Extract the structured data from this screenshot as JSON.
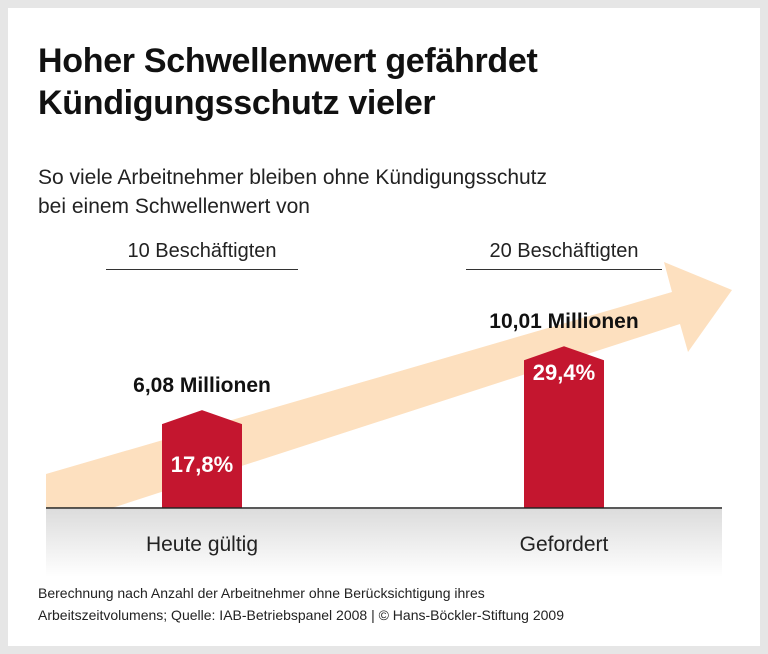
{
  "title_line1": "Hoher Schwellenwert gefährdet",
  "title_line2": "Kündigungsschutz vieler",
  "subtitle_line1": "So viele Arbeitnehmer bleiben ohne Kündigungsschutz",
  "subtitle_line2": "bei einem Schwellenwert von",
  "colors": {
    "bar": "#c4162f",
    "arrow": "#fde0bf",
    "text": "#111111"
  },
  "chart_data": {
    "type": "bar",
    "categories": [
      "Heute gültig",
      "Gefordert"
    ],
    "groups": [
      "10 Beschäftigten",
      "20 Beschäftigten"
    ],
    "values": [
      17.8,
      29.4
    ],
    "unit": "%",
    "value_labels": [
      "17,8%",
      "29,4%"
    ],
    "annotations": [
      "6,08 Millionen",
      "10,01 Millionen"
    ],
    "decoration": "rising-arrow"
  },
  "footnote_line1": "Berechnung nach Anzahl der Arbeitnehmer ohne Berücksichtigung ihres",
  "footnote_line2": "Arbeitszeitvolumens; Quelle: IAB-Betriebspanel 2008 | © Hans-Böckler-Stiftung 2009"
}
